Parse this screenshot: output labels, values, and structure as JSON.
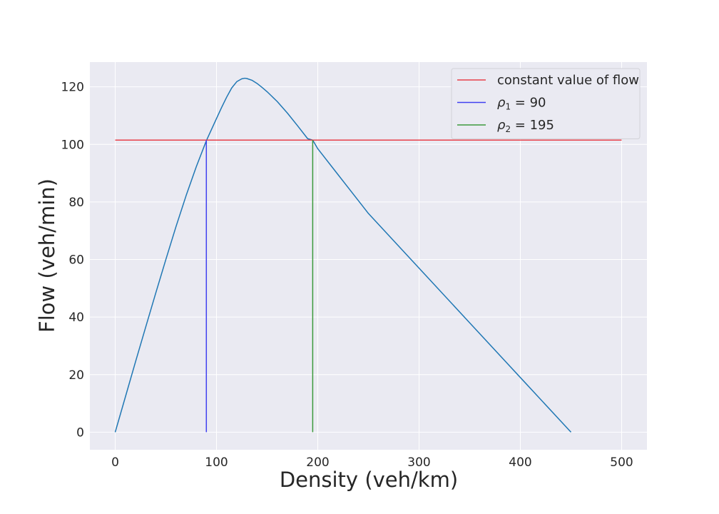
{
  "chart_data": {
    "type": "line",
    "xlabel": "Density (veh/km)",
    "ylabel": "Flow (veh/min)",
    "xlim": [
      -25,
      525
    ],
    "ylim": [
      -6.1,
      128.6
    ],
    "xticks": [
      0,
      100,
      200,
      300,
      400,
      500
    ],
    "yticks": [
      0,
      20,
      40,
      60,
      80,
      100,
      120
    ],
    "grid": true,
    "legend_position": "top-right",
    "series": [
      {
        "name": "",
        "color": "#1f77b4",
        "kind": "flow-density curve",
        "x": [
          0,
          10,
          20,
          30,
          40,
          50,
          60,
          70,
          80,
          90,
          100,
          105,
          110,
          115,
          120,
          125,
          128,
          130,
          135,
          140,
          145,
          150,
          160,
          170,
          180,
          190,
          195,
          200,
          220,
          250,
          300,
          350,
          400,
          450
        ],
        "y": [
          0,
          12.2,
          24.4,
          36.4,
          48.3,
          60.0,
          71.4,
          82.2,
          92.2,
          101.3,
          109.0,
          112.8,
          116.4,
          119.6,
          121.8,
          122.8,
          123.0,
          122.9,
          122.3,
          121.2,
          119.8,
          118.3,
          114.9,
          110.9,
          106.5,
          102.0,
          101.5,
          98.5,
          89.5,
          76.0,
          57.0,
          38.0,
          19.0,
          0
        ]
      },
      {
        "name": "constant value of flow",
        "color": "#e8404a",
        "x": [
          0,
          500
        ],
        "y": [
          101.5,
          101.5
        ]
      },
      {
        "name": "ρ₁ = 90",
        "label_symbol": "ρ",
        "label_sub": "1",
        "label_value": "= 90",
        "color": "#4040f0",
        "x": [
          90,
          90
        ],
        "y": [
          0,
          101.5
        ]
      },
      {
        "name": "ρ₂ = 195",
        "label_symbol": "ρ",
        "label_sub": "2",
        "label_value": "= 195",
        "color": "#3c9a3c",
        "x": [
          195,
          195
        ],
        "y": [
          0,
          101.5
        ]
      }
    ]
  },
  "colors": {
    "plot_background": "#eaeaf2",
    "grid": "#ffffff",
    "text": "#262626"
  }
}
